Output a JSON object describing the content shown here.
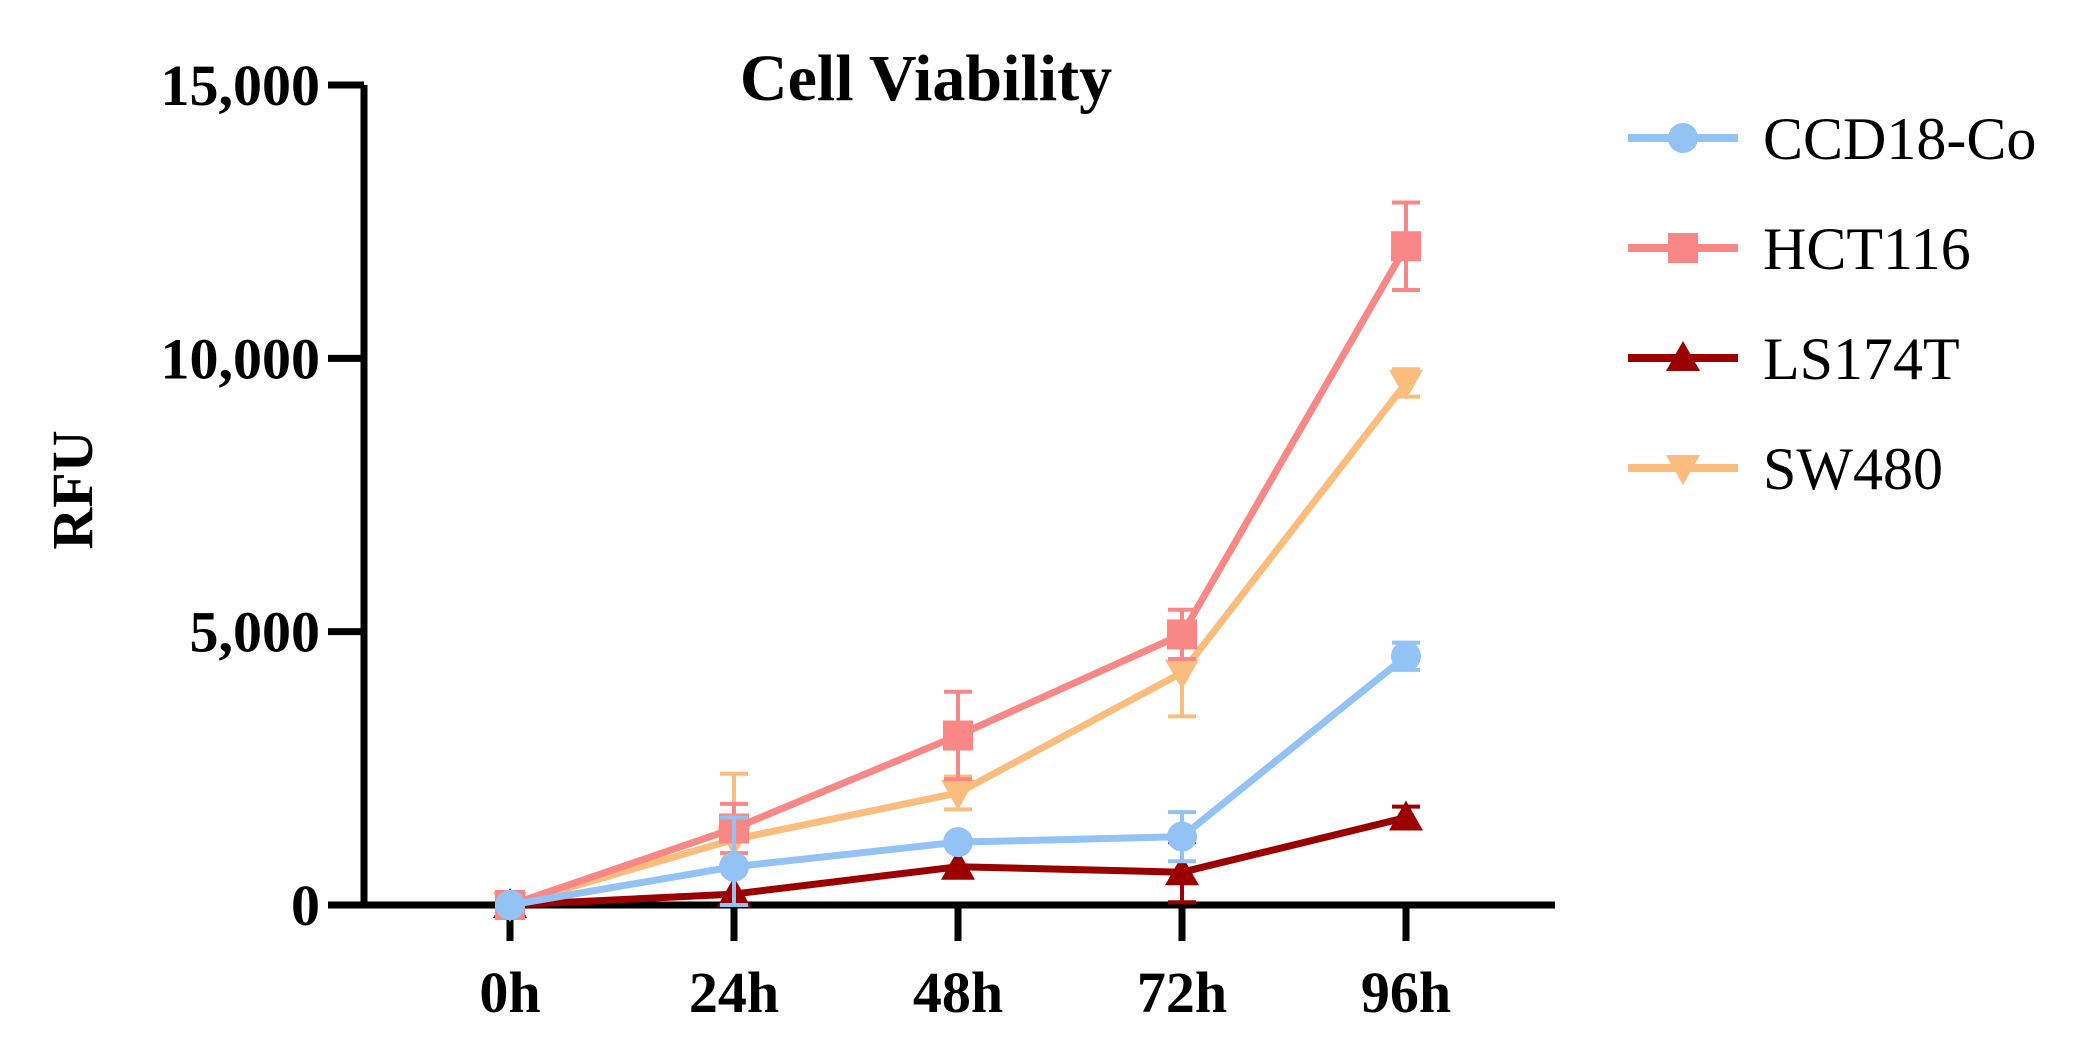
{
  "chart_data": {
    "type": "line",
    "title": "Cell Viability",
    "xlabel": "",
    "ylabel": "RFU",
    "categories": [
      "0h",
      "24h",
      "48h",
      "72h",
      "96h"
    ],
    "ylim": [
      0,
      15000
    ],
    "yticks": [
      0,
      5000,
      10000,
      15000
    ],
    "ytick_labels": [
      "0",
      "5,000",
      "10,000",
      "15,000"
    ],
    "legend_position": "right",
    "grid": false,
    "series": [
      {
        "name": "CCD18-Co",
        "marker": "circle",
        "color": "#93c2f5",
        "values": [
          0,
          700,
          1150,
          1250,
          4550
        ],
        "errors": [
          0,
          900,
          0,
          450,
          250
        ]
      },
      {
        "name": "HCT116",
        "marker": "square",
        "color": "#f98785",
        "values": [
          0,
          1400,
          3100,
          4950,
          12050
        ],
        "errors": [
          0,
          450,
          800,
          450,
          800
        ]
      },
      {
        "name": "LS174T",
        "marker": "triangle-up",
        "color": "#9b0000",
        "values": [
          0,
          200,
          700,
          600,
          1600
        ],
        "errors": [
          0,
          0,
          0,
          550,
          200
        ]
      },
      {
        "name": "SW480",
        "marker": "triangle-down",
        "color": "#fbbd7e",
        "values": [
          0,
          1200,
          2050,
          4250,
          9550
        ],
        "errors": [
          0,
          1200,
          300,
          800,
          250
        ]
      }
    ]
  }
}
